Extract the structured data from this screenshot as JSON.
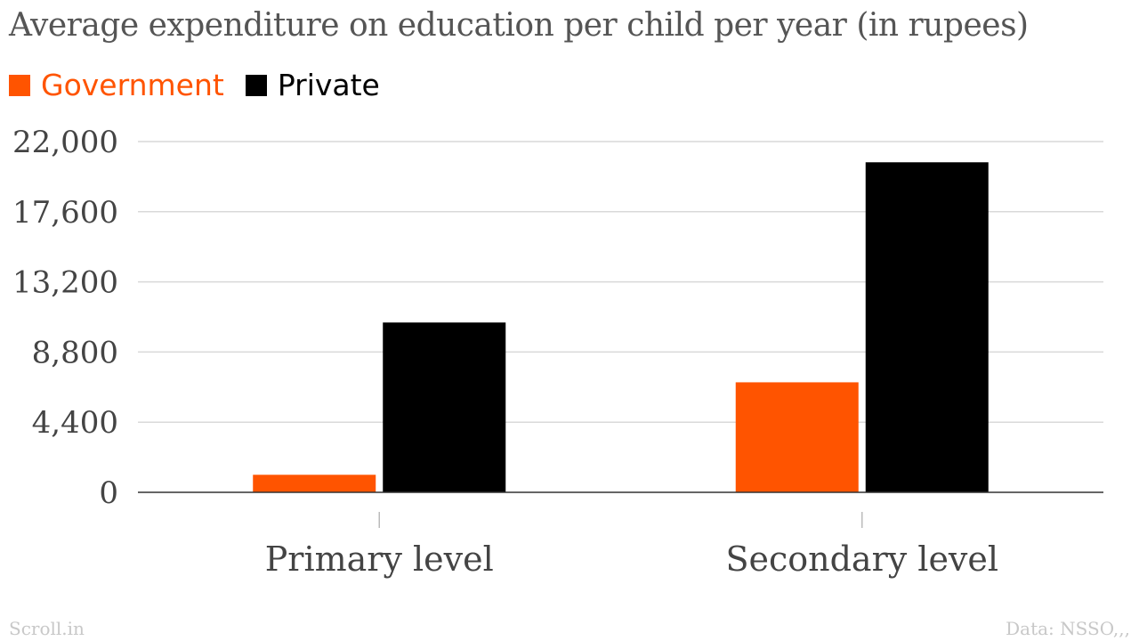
{
  "chart_data": {
    "type": "bar",
    "title": "Average expenditure on education per child per year (in rupees)",
    "categories": [
      "Primary level",
      "Secondary level"
    ],
    "series": [
      {
        "name": "Government",
        "color": "#ff5400",
        "values": [
          1100,
          6900
        ]
      },
      {
        "name": "Private",
        "color": "#000000",
        "values": [
          10650,
          20700
        ]
      }
    ],
    "ylim": [
      0,
      22000
    ],
    "yticks": [
      0,
      4400,
      8800,
      13200,
      17600,
      22000
    ],
    "ytick_labels": [
      "0",
      "4,400",
      "8,800",
      "13,200",
      "17,600",
      "22,000"
    ],
    "xlabel": "",
    "ylabel": "",
    "grid": true,
    "legend": "top-left"
  },
  "footer": {
    "source_left": "Scroll.in",
    "source_right": "Data: NSSO,,,"
  }
}
